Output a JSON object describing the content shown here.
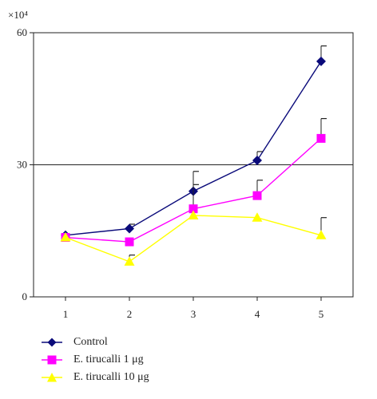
{
  "chart_data": {
    "type": "line",
    "y_multiplier_label": "×10⁴",
    "categories": [
      "1",
      "2",
      "3",
      "4",
      "5"
    ],
    "x": [
      1,
      2,
      3,
      4,
      5
    ],
    "ylim": [
      0,
      60
    ],
    "yticks": [
      "0",
      "30",
      "60"
    ],
    "reference_line_y": 30,
    "series": [
      {
        "name": "Control",
        "color": "#0a0a7a",
        "marker": "diamond",
        "values": [
          14,
          15.5,
          24,
          31,
          53.5
        ],
        "errors": [
          0,
          1,
          4.5,
          2,
          3.5
        ]
      },
      {
        "name": "E. tirucalli 1 μg",
        "color": "#ff00ff",
        "marker": "square",
        "values": [
          13.5,
          12.5,
          20,
          23,
          36
        ],
        "errors": [
          0,
          0,
          5.5,
          3.5,
          4.5
        ]
      },
      {
        "name": "E. tirucalli 10 μg",
        "color": "#ffff00",
        "marker": "triangle",
        "values": [
          13.5,
          8,
          18.5,
          18,
          14
        ],
        "errors": [
          0,
          1.5,
          0,
          0,
          4
        ]
      }
    ]
  }
}
